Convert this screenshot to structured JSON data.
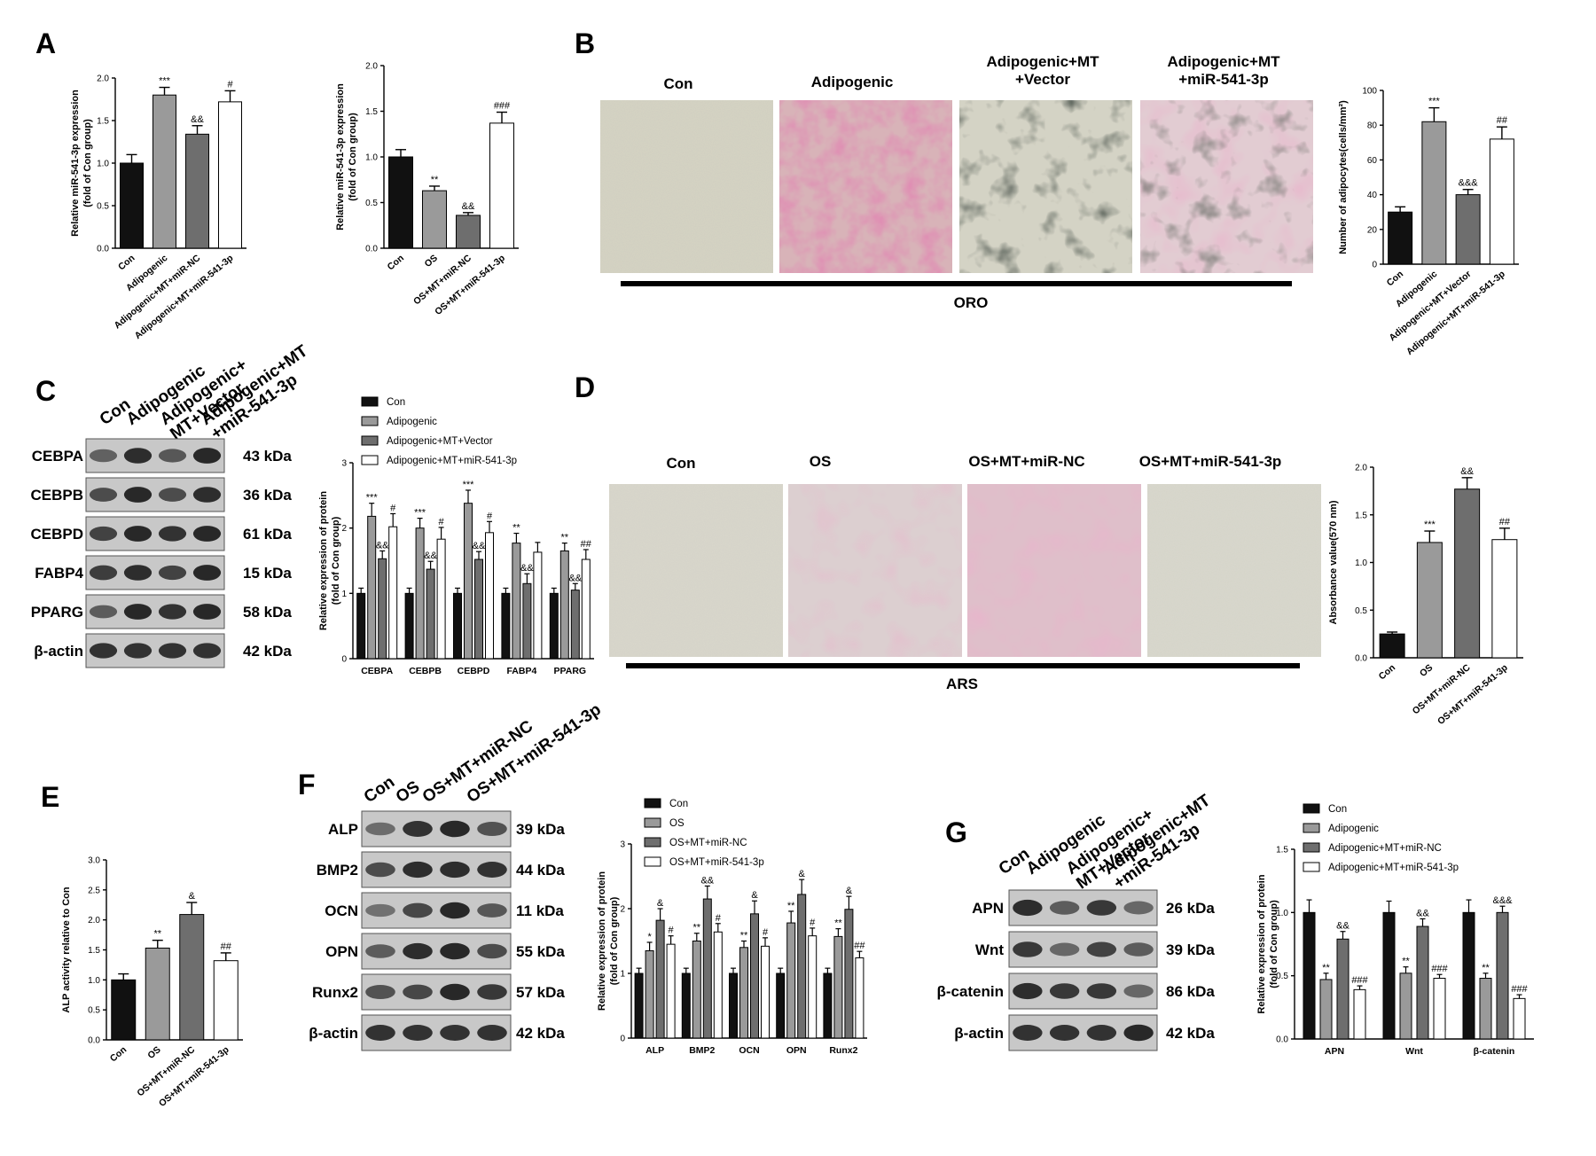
{
  "panels": {
    "A": "A",
    "B": "B",
    "C": "C",
    "D": "D",
    "E": "E",
    "F": "F",
    "G": "G"
  },
  "colors": {
    "black": "#111111",
    "dark_gray": "#6e6e6e",
    "mid_gray": "#9a9a9a",
    "light_gray": "#c9c9c9",
    "white": "#ffffff"
  },
  "micrographs": {
    "B": {
      "labels": [
        "Con",
        "Adipogenic",
        "Adipogenic+MT\n+Vector",
        "Adipogenic+MT\n+miR-541-3p"
      ],
      "stain": "ORO"
    },
    "D": {
      "labels": [
        "Con",
        "OS",
        "OS+MT+miR-NC",
        "OS+MT+miR-541-3p"
      ],
      "stain": "ARS"
    }
  },
  "blots": {
    "C": {
      "lanes": [
        "Con",
        "Adipogenic",
        "Adipogenic+\nMT+Vector",
        "Adipogenic+MT\n+miR-541-3p"
      ],
      "rows": [
        {
          "protein": "CEBPA",
          "kda": "43 kDa"
        },
        {
          "protein": "CEBPB",
          "kda": "36 kDa"
        },
        {
          "protein": "CEBPD",
          "kda": "61 kDa"
        },
        {
          "protein": "FABP4",
          "kda": "15 kDa"
        },
        {
          "protein": "PPARG",
          "kda": "58 kDa"
        },
        {
          "protein": "β-actin",
          "kda": "42 kDa"
        }
      ]
    },
    "F": {
      "lanes": [
        "Con",
        "OS",
        "OS+MT+miR-NC",
        "OS+MT+miR-541-3p"
      ],
      "rows": [
        {
          "protein": "ALP",
          "kda": "39 kDa"
        },
        {
          "protein": "BMP2",
          "kda": "44 kDa"
        },
        {
          "protein": "OCN",
          "kda": "11 kDa"
        },
        {
          "protein": "OPN",
          "kda": "55 kDa"
        },
        {
          "protein": "Runx2",
          "kda": "57 kDa"
        },
        {
          "protein": "β-actin",
          "kda": "42 kDa"
        }
      ]
    },
    "G": {
      "lanes": [
        "Con",
        "Adipogenic",
        "Adipogenic+\nMT+Vector",
        "Adipogenic+MT\n+miR-541-3p"
      ],
      "rows": [
        {
          "protein": "APN",
          "kda": "26 kDa"
        },
        {
          "protein": "Wnt",
          "kda": "39 kDa"
        },
        {
          "protein": "β-catenin",
          "kda": "86 kDa"
        },
        {
          "protein": "β-actin",
          "kda": "42 kDa"
        }
      ]
    }
  },
  "chart_data": [
    {
      "id": "A1",
      "type": "bar",
      "ylabel": "Relative miR-541-3p expression\n(fold of Con group)",
      "ylim": [
        0,
        2.0
      ],
      "yticks": [
        "0.0",
        "0.5",
        "1.0",
        "1.5",
        "2.0"
      ],
      "categories": [
        "Con",
        "Adipogenic",
        "Adipogenic+MT+miR-NC",
        "Adipogenic+MT+miR-541-3p"
      ],
      "values": [
        1.0,
        1.8,
        1.34,
        1.72
      ],
      "errors": [
        0.1,
        0.09,
        0.1,
        0.13
      ],
      "labels": [
        "",
        "***",
        "&&",
        "#"
      ]
    },
    {
      "id": "A2",
      "type": "bar",
      "ylabel": "Relative miR-541-3p expression\n(fold of Con group)",
      "ylim": [
        0,
        2.0
      ],
      "yticks": [
        "0.0",
        "0.5",
        "1.0",
        "1.5",
        "2.0"
      ],
      "categories": [
        "Con",
        "OS",
        "OS+MT+miR-NC",
        "OS+MT+miR-541-3p"
      ],
      "values": [
        1.0,
        0.63,
        0.36,
        1.37
      ],
      "errors": [
        0.08,
        0.05,
        0.03,
        0.12
      ],
      "labels": [
        "",
        "**",
        "&&",
        "###"
      ]
    },
    {
      "id": "B",
      "type": "bar",
      "ylabel": "Number of adipocytes(cells/mm²)",
      "ylim": [
        0,
        100
      ],
      "yticks": [
        "0",
        "20",
        "40",
        "60",
        "80",
        "100"
      ],
      "categories": [
        "Con",
        "Adipogenic",
        "Adipogenic+MT+Vector",
        "Adipogenic+MT+miR-541-3p"
      ],
      "values": [
        30,
        82,
        40,
        72
      ],
      "errors": [
        3,
        8,
        3,
        7
      ],
      "labels": [
        "",
        "***",
        "&&&",
        "##"
      ]
    },
    {
      "id": "C",
      "type": "bar",
      "ylabel": "Relative  expression of protein\n(fold of Con group)",
      "ylim": [
        0,
        3
      ],
      "yticks": [
        "0",
        "1",
        "2",
        "3"
      ],
      "categories": [
        "CEBPA",
        "CEBPB",
        "CEBPD",
        "FABP4",
        "PPARG"
      ],
      "series": [
        {
          "name": "Con",
          "values": [
            1.0,
            1.0,
            1.0,
            1.0,
            1.0
          ],
          "errors": [
            0.08,
            0.08,
            0.08,
            0.08,
            0.08
          ],
          "labels": [
            "",
            "",
            "",
            "",
            ""
          ]
        },
        {
          "name": "Adipogenic",
          "values": [
            2.18,
            2.0,
            2.38,
            1.77,
            1.65
          ],
          "errors": [
            0.2,
            0.15,
            0.2,
            0.15,
            0.12
          ],
          "labels": [
            "***",
            "***",
            "***",
            "**",
            "**"
          ]
        },
        {
          "name": "Adipogenic+MT+Vector",
          "values": [
            1.53,
            1.37,
            1.52,
            1.15,
            1.05
          ],
          "errors": [
            0.12,
            0.12,
            0.12,
            0.15,
            0.1
          ],
          "labels": [
            "&&",
            "&&",
            "&&",
            "&&",
            "&&"
          ]
        },
        {
          "name": "Adipogenic+MT+miR-541-3p",
          "values": [
            2.02,
            1.83,
            1.93,
            1.63,
            1.52
          ],
          "errors": [
            0.2,
            0.18,
            0.17,
            0.15,
            0.15
          ],
          "labels": [
            "#",
            "#",
            "#",
            "",
            "##"
          ]
        }
      ]
    },
    {
      "id": "D",
      "type": "bar",
      "ylabel": "Absorbance value(570 nm)",
      "ylim": [
        0,
        2.0
      ],
      "yticks": [
        "0.0",
        "0.5",
        "1.0",
        "1.5",
        "2.0"
      ],
      "categories": [
        "Con",
        "OS",
        "OS+MT+miR-NC",
        "OS+MT+miR-541-3p"
      ],
      "values": [
        0.25,
        1.21,
        1.77,
        1.24
      ],
      "errors": [
        0.02,
        0.12,
        0.12,
        0.12
      ],
      "labels": [
        "",
        "***",
        "&&",
        "##"
      ]
    },
    {
      "id": "E",
      "type": "bar",
      "ylabel": "ALP activity relative to Con",
      "ylim": [
        0,
        3.0
      ],
      "yticks": [
        "0.0",
        "0.5",
        "1.0",
        "1.5",
        "2.0",
        "2.5",
        "3.0"
      ],
      "categories": [
        "Con",
        "OS",
        "OS+MT+miR-NC",
        "OS+MT+miR-541-3p"
      ],
      "values": [
        1.0,
        1.53,
        2.09,
        1.32
      ],
      "errors": [
        0.1,
        0.13,
        0.2,
        0.13
      ],
      "labels": [
        "",
        "**",
        "&",
        "##"
      ]
    },
    {
      "id": "F",
      "type": "bar",
      "ylabel": "Relative  expression of protein\n(fold of Con group)",
      "ylim": [
        0,
        3
      ],
      "yticks": [
        "0",
        "1",
        "2",
        "3"
      ],
      "categories": [
        "ALP",
        "BMP2",
        "OCN",
        "OPN",
        "Runx2"
      ],
      "series": [
        {
          "name": "Con",
          "values": [
            1.0,
            1.0,
            1.0,
            1.0,
            1.0
          ],
          "errors": [
            0.08,
            0.08,
            0.08,
            0.08,
            0.08
          ],
          "labels": [
            "",
            "",
            "",
            "",
            ""
          ]
        },
        {
          "name": "OS",
          "values": [
            1.35,
            1.5,
            1.4,
            1.78,
            1.57
          ],
          "errors": [
            0.13,
            0.12,
            0.1,
            0.18,
            0.12
          ],
          "labels": [
            "*",
            "**",
            "**",
            "**",
            "**"
          ]
        },
        {
          "name": "OS+MT+miR-NC",
          "values": [
            1.82,
            2.15,
            1.92,
            2.22,
            1.99
          ],
          "errors": [
            0.18,
            0.2,
            0.2,
            0.23,
            0.2
          ],
          "labels": [
            "&",
            "&&",
            "&",
            "&",
            "&"
          ]
        },
        {
          "name": "OS+MT+miR-541-3p",
          "values": [
            1.45,
            1.64,
            1.42,
            1.58,
            1.24
          ],
          "errors": [
            0.13,
            0.13,
            0.13,
            0.12,
            0.1
          ],
          "labels": [
            "#",
            "#",
            "#",
            "#",
            "##"
          ]
        }
      ]
    },
    {
      "id": "G",
      "type": "bar",
      "ylabel": "Relative  expression of protein\n(fold of Con group)",
      "ylim": [
        0,
        1.5
      ],
      "yticks": [
        "0.0",
        "0.5",
        "1.0",
        "1.5"
      ],
      "categories": [
        "APN",
        "Wnt",
        "β-catenin"
      ],
      "series": [
        {
          "name": "Con",
          "values": [
            1.0,
            1.0,
            1.0
          ],
          "errors": [
            0.1,
            0.09,
            0.1
          ],
          "labels": [
            "",
            "",
            ""
          ]
        },
        {
          "name": "Adipogenic",
          "values": [
            0.47,
            0.52,
            0.48
          ],
          "errors": [
            0.05,
            0.05,
            0.04
          ],
          "labels": [
            "**",
            "**",
            "**"
          ]
        },
        {
          "name": "Adipogenic+MT+miR-NC",
          "values": [
            0.79,
            0.89,
            1.0
          ],
          "errors": [
            0.06,
            0.06,
            0.05
          ],
          "labels": [
            "&&",
            "&&",
            "&&&"
          ]
        },
        {
          "name": "Adipogenic+MT+miR-541-3p",
          "values": [
            0.39,
            0.48,
            0.32
          ],
          "errors": [
            0.03,
            0.03,
            0.03
          ],
          "labels": [
            "###",
            "###",
            "###"
          ]
        }
      ]
    }
  ]
}
